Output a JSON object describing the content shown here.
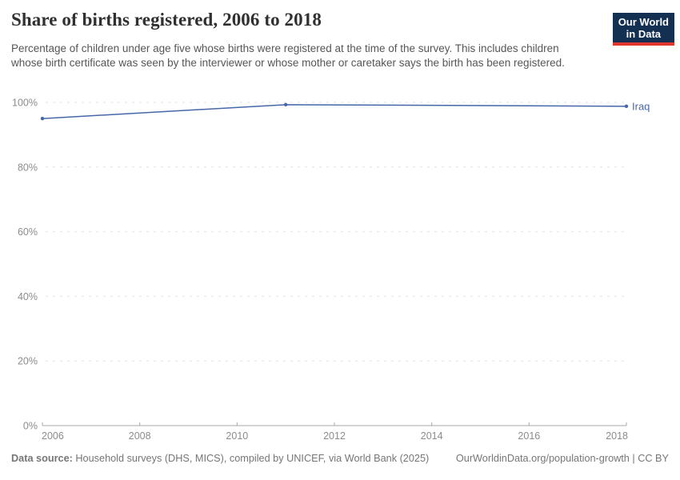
{
  "header": {
    "title": "Share of births registered, 2006 to 2018",
    "subtitle": "Percentage of children under age five whose births were registered at the time of the survey. This includes children whose birth certificate was seen by the interviewer or whose mother or caretaker says the birth has been registered.",
    "logo": {
      "line1": "Our World",
      "line2": "in Data"
    }
  },
  "chart_data": {
    "type": "line",
    "title": "Share of births registered, 2006 to 2018",
    "xlabel": "",
    "ylabel": "",
    "x": {
      "min": 2006,
      "max": 2018,
      "ticks": [
        2006,
        2008,
        2010,
        2012,
        2014,
        2016,
        2018
      ]
    },
    "y": {
      "min": 0,
      "max": 100,
      "ticks": [
        0,
        20,
        40,
        60,
        80,
        100
      ],
      "tick_suffix": "%"
    },
    "grid": "horizontal-dashed",
    "legend_position": "end-of-line-label",
    "series": [
      {
        "name": "Iraq",
        "color": "#4767a8",
        "points": [
          {
            "x": 2006,
            "y": 95.0
          },
          {
            "x": 2011,
            "y": 99.3
          },
          {
            "x": 2018,
            "y": 98.8
          }
        ]
      }
    ]
  },
  "colors": {
    "line": "#4767a8",
    "grid": "#e2e2e2",
    "axis": "#a8a8a8",
    "tick_label": "#8c8c8c",
    "logo_bg": "#132f52",
    "logo_bar": "#e0362d"
  },
  "footer": {
    "source_label": "Data source:",
    "source_text": "Household surveys (DHS, MICS), compiled by UNICEF, via World Bank (2025)",
    "right_text": "OurWorldinData.org/population-growth | CC BY"
  }
}
